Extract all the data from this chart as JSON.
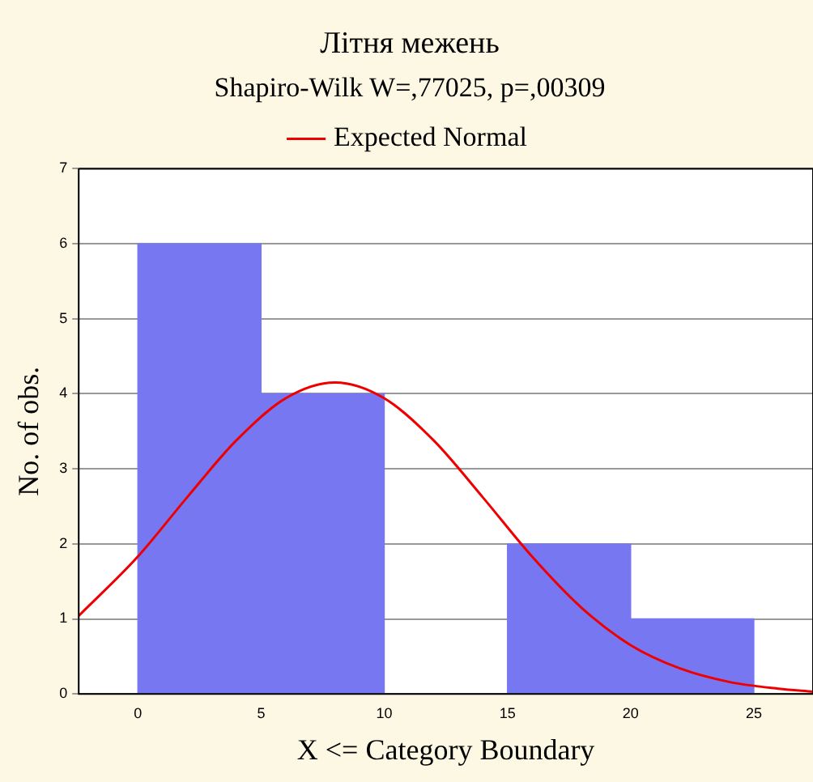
{
  "chart_data": {
    "type": "histogram",
    "title": "Літня межень",
    "subtitle": "Shapiro-Wilk W=,77025, p=,00309",
    "xlabel": "X <= Category Boundary",
    "ylabel": "No. of obs.",
    "bins": [
      0,
      5,
      10,
      15,
      20,
      25
    ],
    "values": [
      6,
      4,
      0,
      2,
      1
    ],
    "color": "#7777f2",
    "series": [
      {
        "name": "Expected Normal",
        "type": "line",
        "color": "#ee0000",
        "x": [
          -2.4,
          0,
          2,
          4,
          6,
          8,
          10,
          12,
          14,
          16,
          18,
          20,
          22,
          24,
          26,
          27.4
        ],
        "values": [
          1.04,
          1.83,
          2.62,
          3.38,
          3.94,
          4.15,
          3.94,
          3.38,
          2.62,
          1.83,
          1.15,
          0.65,
          0.34,
          0.16,
          0.07,
          0.03
        ]
      }
    ],
    "xlim": [
      -2.4,
      27.4
    ],
    "xticks": [
      0,
      5,
      10,
      15,
      20,
      25
    ],
    "ylim": [
      0,
      7
    ],
    "yticks": [
      0,
      1,
      2,
      3,
      4,
      5,
      6,
      7
    ],
    "grid": "y",
    "legend": "top",
    "marker": "none",
    "line_style": "solid"
  }
}
